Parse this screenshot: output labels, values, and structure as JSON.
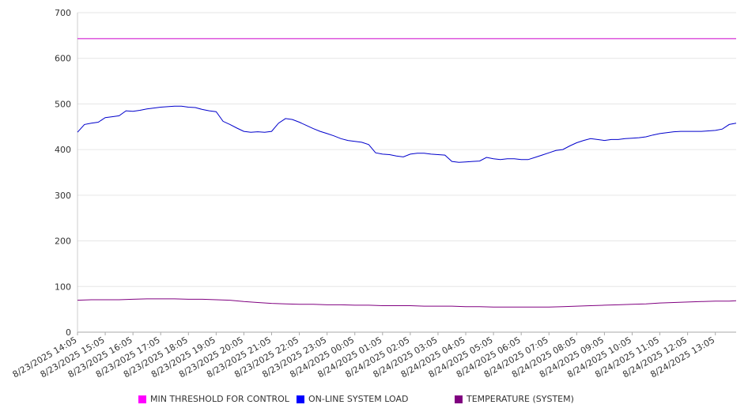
{
  "chart_data": {
    "type": "line",
    "title": "",
    "xlabel": "",
    "ylabel": "",
    "ylim": [
      0,
      700
    ],
    "yticks": [
      0,
      100,
      200,
      300,
      400,
      500,
      600,
      700
    ],
    "grid": true,
    "legend_position": "bottom",
    "x_tick_labels": [
      "8/23/2025 14:05",
      "8/23/2025 15:05",
      "8/23/2025 16:05",
      "8/23/2025 17:05",
      "8/23/2025 18:05",
      "8/23/2025 19:05",
      "8/23/2025 20:05",
      "8/23/2025 21:05",
      "8/23/2025 22:05",
      "8/23/2025 23:05",
      "8/24/2025 00:05",
      "8/24/2025 01:05",
      "8/24/2025 02:05",
      "8/24/2025 03:05",
      "8/24/2025 04:05",
      "8/24/2025 05:05",
      "8/24/2025 06:05",
      "8/24/2025 07:05",
      "8/24/2025 08:05",
      "8/24/2025 09:05",
      "8/24/2025 10:05",
      "8/24/2025 11:05",
      "8/24/2025 12:05",
      "8/24/2025 13:05"
    ],
    "x_range_hours": [
      0,
      23.75
    ],
    "series": [
      {
        "name": "MIN THRESHOLD FOR CONTROL",
        "color": "#cc00cc",
        "x_hours": [
          0,
          23.75
        ],
        "values": [
          643,
          643
        ]
      },
      {
        "name": "ON-LINE SYSTEM LOAD",
        "color": "#0000cc",
        "x_hours": [
          0,
          0.25,
          0.5,
          0.75,
          1.0,
          1.25,
          1.5,
          1.75,
          2.0,
          2.25,
          2.5,
          2.75,
          3.0,
          3.25,
          3.5,
          3.75,
          4.0,
          4.25,
          4.5,
          4.75,
          5.0,
          5.25,
          5.5,
          5.75,
          6.0,
          6.25,
          6.5,
          6.75,
          7.0,
          7.25,
          7.5,
          7.75,
          8.0,
          8.25,
          8.5,
          8.75,
          9.0,
          9.25,
          9.5,
          9.75,
          10.0,
          10.25,
          10.5,
          10.75,
          11.0,
          11.25,
          11.5,
          11.75,
          12.0,
          12.25,
          12.5,
          12.75,
          13.0,
          13.25,
          13.5,
          13.75,
          14.0,
          14.25,
          14.5,
          14.75,
          15.0,
          15.25,
          15.5,
          15.75,
          16.0,
          16.25,
          16.5,
          16.75,
          17.0,
          17.25,
          17.5,
          17.75,
          18.0,
          18.25,
          18.5,
          18.75,
          19.0,
          19.25,
          19.5,
          19.75,
          20.0,
          20.25,
          20.5,
          20.75,
          21.0,
          21.25,
          21.5,
          21.75,
          22.0,
          22.25,
          22.5,
          22.75,
          23.0,
          23.25,
          23.5,
          23.75
        ],
        "values": [
          438,
          455,
          458,
          460,
          470,
          472,
          474,
          485,
          484,
          486,
          489,
          491,
          493,
          494,
          495,
          495,
          493,
          492,
          488,
          485,
          483,
          462,
          455,
          447,
          440,
          438,
          439,
          438,
          440,
          458,
          468,
          466,
          460,
          453,
          446,
          440,
          435,
          430,
          424,
          420,
          418,
          416,
          411,
          393,
          390,
          389,
          386,
          384,
          390,
          392,
          392,
          390,
          389,
          388,
          374,
          372,
          373,
          374,
          375,
          383,
          380,
          378,
          380,
          380,
          378,
          378,
          383,
          388,
          393,
          398,
          400,
          408,
          415,
          420,
          424,
          422,
          420,
          422,
          422,
          424,
          425,
          426,
          428,
          432,
          435,
          437,
          439,
          440,
          440,
          440,
          440,
          441,
          442,
          445,
          455,
          458
        ]
      },
      {
        "name": "TEMPERATURE (SYSTEM)",
        "color": "#800080",
        "x_hours": [
          0,
          0.5,
          1.0,
          1.5,
          2.0,
          2.5,
          3.0,
          3.5,
          4.0,
          4.5,
          5.0,
          5.5,
          6.0,
          6.5,
          7.0,
          7.5,
          8.0,
          8.5,
          9.0,
          9.5,
          10.0,
          10.5,
          11.0,
          11.5,
          12.0,
          12.5,
          13.0,
          13.5,
          14.0,
          14.5,
          15.0,
          15.5,
          16.0,
          16.5,
          17.0,
          17.5,
          18.0,
          18.5,
          19.0,
          19.5,
          20.0,
          20.5,
          21.0,
          21.5,
          22.0,
          22.5,
          23.0,
          23.5,
          23.75
        ],
        "values": [
          70,
          71,
          71,
          71,
          72,
          73,
          73,
          73,
          72,
          72,
          71,
          70,
          67,
          65,
          63,
          62,
          61,
          61,
          60,
          60,
          59,
          59,
          58,
          58,
          58,
          57,
          57,
          57,
          56,
          56,
          55,
          55,
          55,
          55,
          55,
          56,
          57,
          58,
          59,
          60,
          61,
          62,
          64,
          65,
          66,
          67,
          68,
          68,
          69
        ]
      }
    ]
  }
}
